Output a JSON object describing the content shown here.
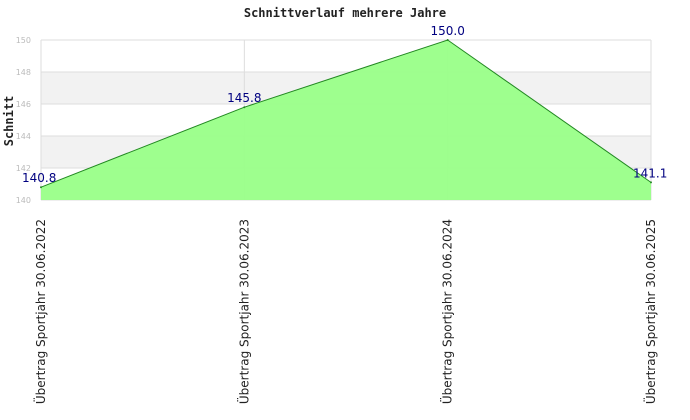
{
  "chart_data": {
    "type": "area",
    "title": "Schnittverlauf mehrere Jahre",
    "ylabel": "Schnitt",
    "xlabel": "",
    "categories": [
      "Übertrag Sportjahr 30.06.2022",
      "Übertrag Sportjahr 30.06.2023",
      "Übertrag Sportjahr 30.06.2024",
      "Übertrag Sportjahr 30.06.2025"
    ],
    "values": [
      140.8,
      145.8,
      150.0,
      141.1
    ],
    "data_labels": [
      "140.8",
      "145.8",
      "150.0",
      "141.1"
    ],
    "ylim": [
      140,
      150
    ],
    "yticks": [
      140,
      142,
      144,
      146,
      148,
      150
    ],
    "grid": true,
    "legend": "none",
    "colors": {
      "fill": "#99ff88",
      "line": "#228822",
      "band": "#f2f2f2",
      "grid": "#dddddd",
      "data_label": "#000080"
    }
  }
}
